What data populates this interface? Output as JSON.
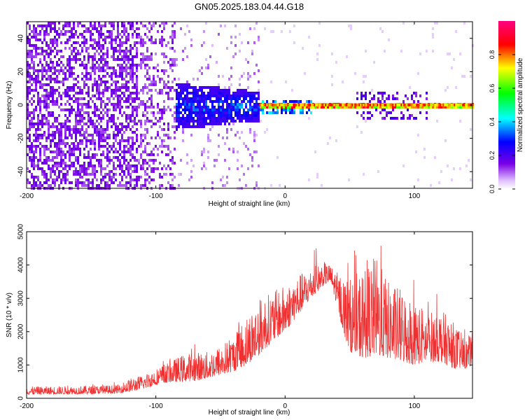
{
  "title": "GN05.2025.183.04.44.G18",
  "chart_data": [
    {
      "type": "heatmap",
      "xlabel": "Height of straight line (km)",
      "ylabel": "Frequency (Hz)",
      "xlim": [
        -200,
        145
      ],
      "ylim": [
        -50,
        50
      ],
      "xticks": [
        -200,
        -100,
        0,
        100
      ],
      "yticks": [
        -40,
        -20,
        0,
        20,
        40
      ],
      "colorbar": {
        "label": "Normalized spectral amplitude",
        "range": [
          0,
          1
        ],
        "ticks": [
          0.0,
          0.2,
          0.4,
          0.6,
          0.8
        ]
      },
      "colors": [
        "#ffffff",
        "#e0c0ff",
        "#7a00e6",
        "#0000ff",
        "#00ffff",
        "#00ff00",
        "#ffff00",
        "#ff0000",
        "#ff0080"
      ],
      "ridge": {
        "frequency": 0,
        "starts_at": -20,
        "peak_amplitude": 0.9
      }
    },
    {
      "type": "line",
      "xlabel": "Height of straight line (km)",
      "ylabel": "SNR (10 * v/v)",
      "xlim": [
        -200,
        145
      ],
      "ylim": [
        0,
        5000
      ],
      "xticks": [
        -200,
        -100,
        0,
        100
      ],
      "yticks": [
        0,
        1000,
        2000,
        3000,
        4000,
        5000
      ],
      "color": "#f03030",
      "envelope": {
        "x": [
          -200,
          -150,
          -130,
          -120,
          -110,
          -100,
          -90,
          -80,
          -70,
          -60,
          -50,
          -40,
          -30,
          -20,
          -10,
          0,
          10,
          20,
          30,
          35,
          40,
          45,
          50,
          60,
          70,
          80,
          90,
          100,
          110,
          120,
          130,
          140,
          145
        ],
        "lower": [
          120,
          130,
          150,
          200,
          280,
          400,
          480,
          500,
          520,
          600,
          700,
          800,
          1000,
          1300,
          1700,
          2000,
          2500,
          3000,
          3400,
          3500,
          2800,
          2000,
          1400,
          1200,
          1300,
          1200,
          1100,
          1000,
          1100,
          1100,
          900,
          900,
          1000
        ],
        "upper": [
          350,
          380,
          400,
          600,
          700,
          900,
          1100,
          1300,
          1400,
          1400,
          1600,
          1900,
          2500,
          3000,
          3200,
          3400,
          3700,
          3900,
          4100,
          4000,
          3800,
          3700,
          3600,
          3900,
          4300,
          3500,
          3300,
          3000,
          2600,
          2700,
          2300,
          1800,
          2000
        ]
      }
    }
  ]
}
